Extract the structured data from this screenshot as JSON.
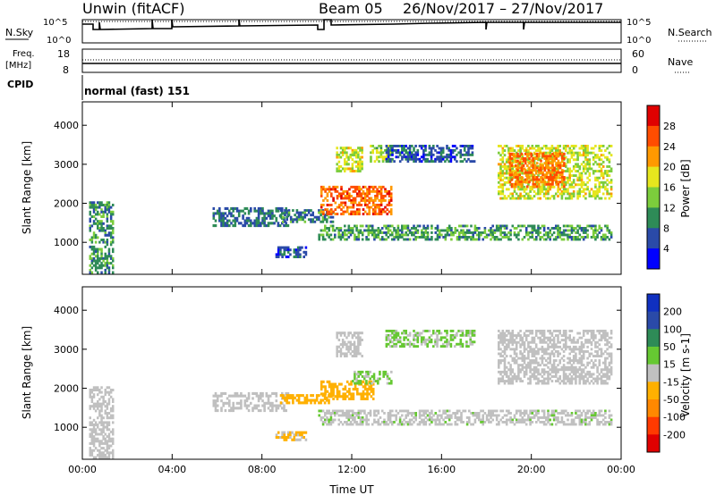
{
  "header": {
    "station": "Unwin (fitACF)",
    "beam": "Beam 05",
    "date_range": "26/Nov/2017 – 27/Nov/2017"
  },
  "panels": {
    "nsky_label": "N.Sky",
    "nsearch_label": "N.Search",
    "freq_label_1": "Freq.",
    "freq_label_2": "[MHz]",
    "nave_label": "Nave",
    "cpid_label": "CPID",
    "cpid_text": "normal (fast) 151",
    "noise_left_ticks": [
      "10^5",
      "10^0"
    ],
    "noise_right_ticks": [
      "10^5",
      "10^0"
    ],
    "freq_left_ticks": [
      "18",
      "8"
    ],
    "freq_right_ticks": [
      "60",
      "0"
    ]
  },
  "colors": {
    "power_scale": [
      "#0000ff",
      "#2a4aa8",
      "#2e8b57",
      "#7ccd3c",
      "#e6e61e",
      "#ff9900",
      "#ff4d00",
      "#e00000"
    ],
    "velocity_scale": [
      "#1030c0",
      "#2a4aa8",
      "#2e8b57",
      "#66c832",
      "#c0c0c0",
      "#ffb000",
      "#ff8800",
      "#ff3a00",
      "#e00000"
    ]
  },
  "chart_data": [
    {
      "type": "heatmap",
      "title": "",
      "xlabel": "Time UT",
      "ylabel": "Slant Range [km]",
      "x_ticks": [
        "00:00",
        "04:00",
        "08:00",
        "12:00",
        "16:00",
        "20:00",
        "00:00"
      ],
      "x_range_hours": [
        0,
        24
      ],
      "y_ticks": [
        1000,
        2000,
        3000,
        4000
      ],
      "ylim": [
        180,
        4600
      ],
      "colorbar": {
        "label": "Power [dB]",
        "ticks": [
          4,
          8,
          12,
          16,
          20,
          24,
          28
        ],
        "range": [
          0,
          32
        ]
      },
      "regions": [
        {
          "t": [
            0.3,
            1.4
          ],
          "r": [
            200,
            2050
          ],
          "value": 10
        },
        {
          "t": [
            5.8,
            9.2
          ],
          "r": [
            1400,
            1900
          ],
          "value": 8
        },
        {
          "t": [
            8.8,
            11.2
          ],
          "r": [
            1500,
            1850
          ],
          "value": 9
        },
        {
          "t": [
            8.6,
            10.0
          ],
          "r": [
            600,
            900
          ],
          "value": 6
        },
        {
          "t": [
            10.6,
            13.8
          ],
          "r": [
            1700,
            2450
          ],
          "value": 25
        },
        {
          "t": [
            11.3,
            12.5
          ],
          "r": [
            2800,
            3450
          ],
          "value": 17
        },
        {
          "t": [
            12.8,
            13.8
          ],
          "r": [
            3050,
            3500
          ],
          "value": 15
        },
        {
          "t": [
            13.5,
            17.5
          ],
          "r": [
            3050,
            3500
          ],
          "value": 7
        },
        {
          "t": [
            10.5,
            23.6
          ],
          "r": [
            1050,
            1450
          ],
          "value": 11
        },
        {
          "t": [
            18.5,
            23.6
          ],
          "r": [
            2100,
            3500
          ],
          "value": 17
        },
        {
          "t": [
            19.0,
            21.5
          ],
          "r": [
            2400,
            3300
          ],
          "value": 24
        }
      ]
    },
    {
      "type": "heatmap",
      "title": "",
      "xlabel": "Time UT",
      "ylabel": "Slant Range [km]",
      "x_ticks": [
        "00:00",
        "04:00",
        "08:00",
        "12:00",
        "16:00",
        "20:00",
        "00:00"
      ],
      "x_range_hours": [
        0,
        24
      ],
      "y_ticks": [
        1000,
        2000,
        3000,
        4000
      ],
      "ylim": [
        180,
        4600
      ],
      "colorbar": {
        "label": "Velocity [m s-1]",
        "ticks": [
          200,
          100,
          50,
          15,
          -15,
          -50,
          -100,
          -200
        ],
        "range": [
          -300,
          300
        ]
      },
      "regions": [
        {
          "t": [
            0.3,
            1.4
          ],
          "r": [
            200,
            2050
          ],
          "value": 0
        },
        {
          "t": [
            5.8,
            9.2
          ],
          "r": [
            1400,
            1900
          ],
          "value": 0
        },
        {
          "t": [
            8.8,
            11.2
          ],
          "r": [
            1600,
            1850
          ],
          "value": -70
        },
        {
          "t": [
            8.6,
            10.0
          ],
          "r": [
            650,
            900
          ],
          "value": -40
        },
        {
          "t": [
            10.6,
            13.0
          ],
          "r": [
            1700,
            2200
          ],
          "value": -70
        },
        {
          "t": [
            12.0,
            13.8
          ],
          "r": [
            2100,
            2450
          ],
          "value": 40
        },
        {
          "t": [
            11.3,
            12.5
          ],
          "r": [
            2800,
            3450
          ],
          "value": 0
        },
        {
          "t": [
            13.5,
            17.5
          ],
          "r": [
            3050,
            3500
          ],
          "value": 40
        },
        {
          "t": [
            10.5,
            23.6
          ],
          "r": [
            1050,
            1450
          ],
          "value": 10
        },
        {
          "t": [
            18.5,
            23.6
          ],
          "r": [
            2100,
            3500
          ],
          "value": 0
        }
      ]
    }
  ]
}
